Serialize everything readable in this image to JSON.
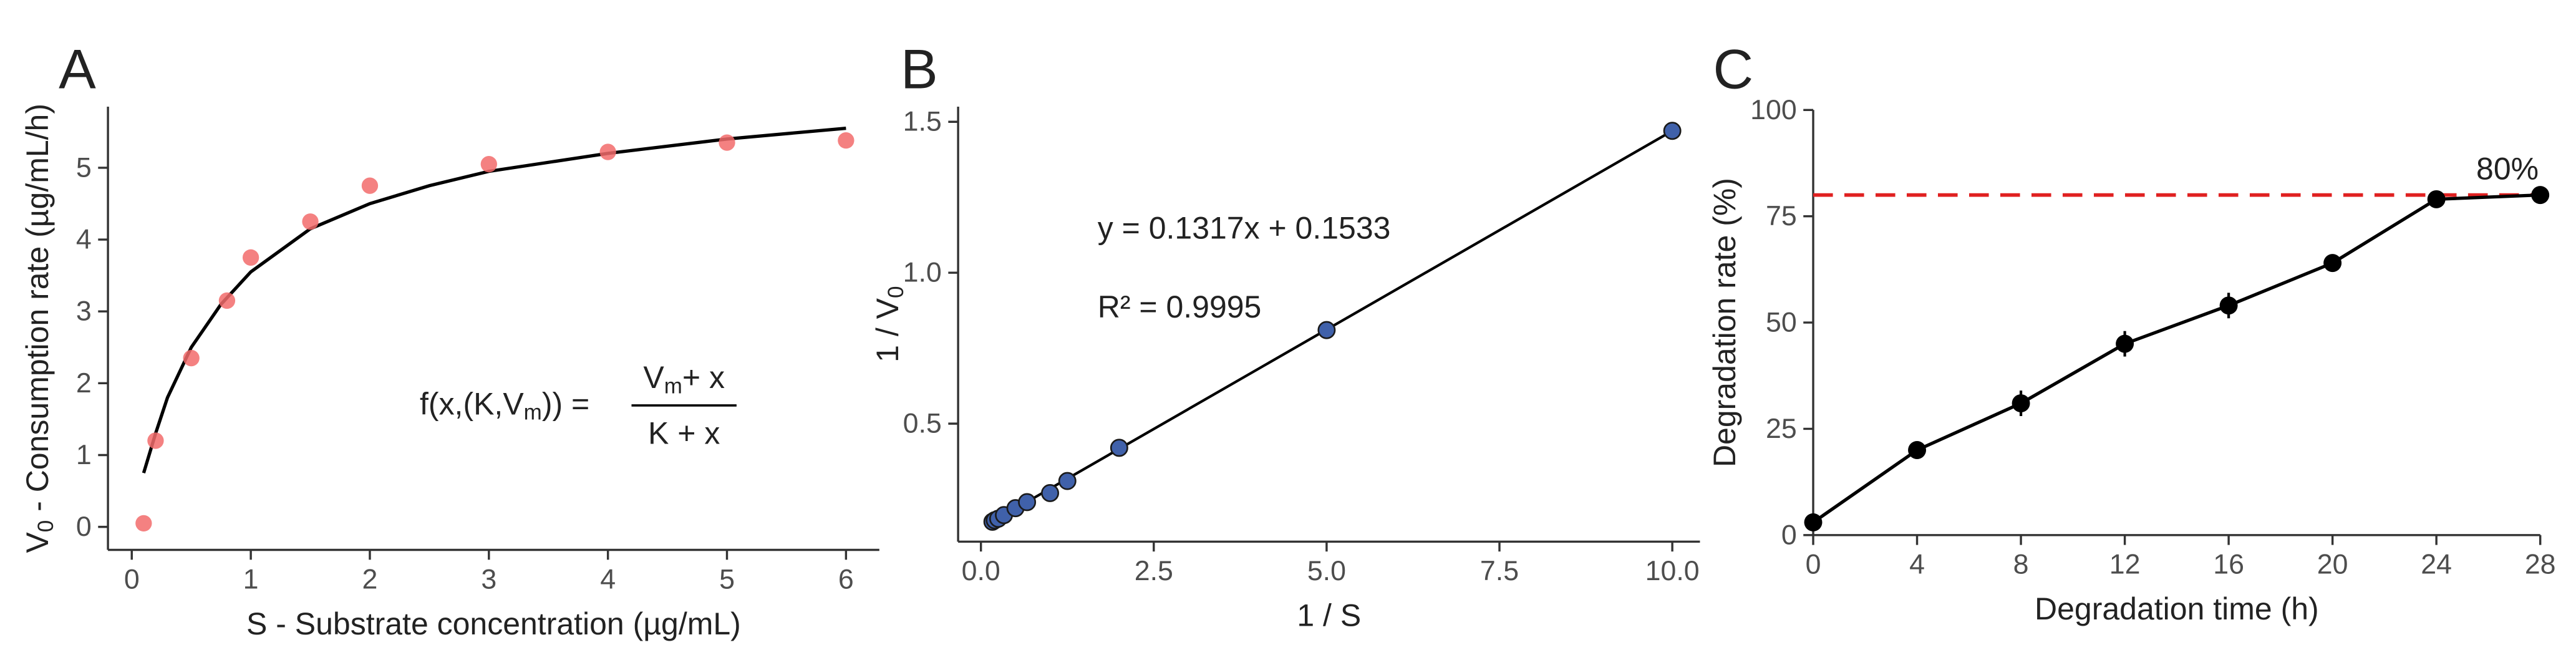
{
  "chart_data": [
    {
      "type": "scatter",
      "panel": "A",
      "xlabel": "S - Substrate concentration (µg/mL)",
      "ylabel": {
        "symbol": "V",
        "sub": "0",
        "text": " - Consumption rate (µg/mL/h)"
      },
      "x": [
        0.1,
        0.2,
        0.5,
        0.8,
        1,
        1.5,
        2,
        3,
        4,
        5,
        6
      ],
      "values": [
        0.05,
        1.2,
        2.35,
        3.15,
        3.75,
        4.25,
        4.75,
        5.05,
        5.22,
        5.35,
        5.38
      ],
      "color": "#f26b6b",
      "curve": {
        "x": [
          0.1,
          0.2,
          0.3,
          0.5,
          0.75,
          1,
          1.5,
          2,
          2.5,
          3,
          4,
          5,
          6
        ],
        "values": [
          0.75,
          1.3,
          1.8,
          2.5,
          3.1,
          3.55,
          4.15,
          4.5,
          4.75,
          4.95,
          5.2,
          5.4,
          5.55
        ]
      },
      "formula": {
        "lhs": "f(x,(K,V",
        "lhs_sub": "m",
        "lhs_end": ")) =",
        "num": "V",
        "num_sub": "m",
        "num_end": "+ x",
        "den": "K + x"
      },
      "xlim": [
        -0.2,
        6.28
      ],
      "ylim": [
        -0.32,
        5.85
      ],
      "xticks": [
        0,
        1,
        2,
        3,
        4,
        5,
        6
      ],
      "yticks": [
        0,
        1,
        2,
        3,
        4,
        5
      ]
    },
    {
      "type": "scatter",
      "panel": "B",
      "xlabel": "1 / S",
      "ylabel": {
        "symbol": "1 / V",
        "sub": "0"
      },
      "x": [
        0.1667,
        0.2,
        0.25,
        0.333,
        0.5,
        0.667,
        1,
        1.25,
        2,
        5,
        10
      ],
      "values": [
        0.175,
        0.18,
        0.185,
        0.197,
        0.22,
        0.24,
        0.27,
        0.31,
        0.42,
        0.81,
        1.47
      ],
      "color": "#4061aa",
      "fit": {
        "x": [
          0.1667,
          10
        ],
        "values": [
          0.175,
          1.47
        ]
      },
      "equation": "y = 0.1317x + 0.1533",
      "r_squared": "R² = 0.9995",
      "xlim": [
        -0.33,
        10.4
      ],
      "ylim": [
        0.109,
        1.55
      ],
      "xticks": [
        {
          "value": 0,
          "label": "0.0"
        },
        2.5,
        {
          "value": 5,
          "label": "5.0"
        },
        7.5,
        {
          "value": 10,
          "label": "10.0"
        }
      ],
      "yticks": [
        0.5,
        {
          "value": 1,
          "label": "1.0"
        },
        1.5
      ]
    },
    {
      "type": "line",
      "panel": "C",
      "xlabel": "Degradation time (h)",
      "ylabel": "Degradation rate (%)",
      "x": [
        0,
        4,
        8,
        12,
        16,
        20,
        24,
        28
      ],
      "values": [
        3,
        20,
        31,
        45,
        54,
        64,
        79,
        80
      ],
      "errors": [
        1,
        2,
        3,
        3,
        3,
        2,
        1,
        1
      ],
      "color": "#000000",
      "reference": {
        "value": 80,
        "label": "80%",
        "color": "#e02020"
      },
      "xlim": [
        0,
        28
      ],
      "ylim": [
        0,
        100
      ],
      "xticks": [
        0,
        4,
        8,
        12,
        16,
        20,
        24,
        28
      ],
      "yticks": [
        0,
        25,
        50,
        75,
        100
      ]
    }
  ]
}
